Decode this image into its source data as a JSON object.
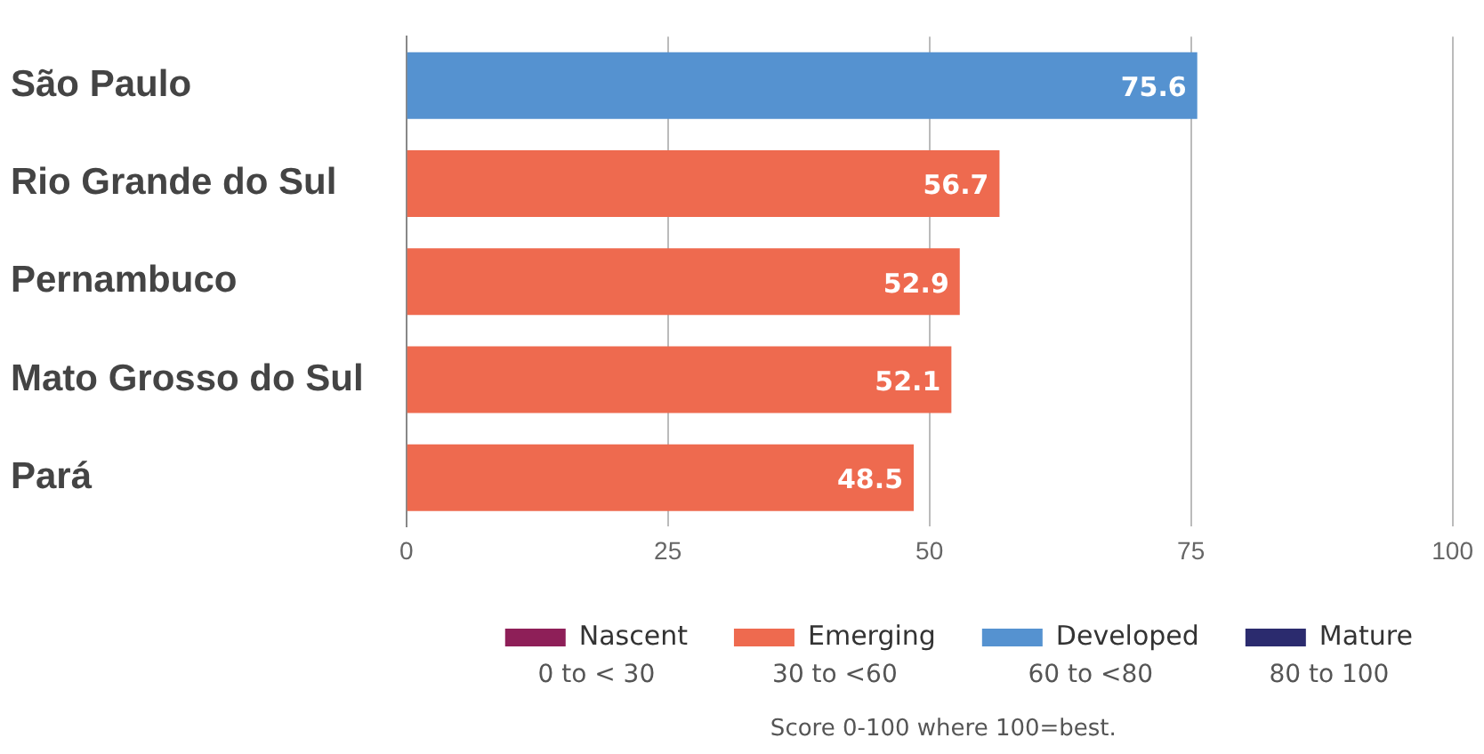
{
  "chart_data": {
    "type": "bar",
    "orientation": "horizontal",
    "stacked": true,
    "categories": [
      "São Paulo",
      "Rio Grande do Sul",
      "Pernambuco",
      "Mato Grosso do Sul",
      "Pará"
    ],
    "series": [
      {
        "name": "Nascent",
        "color": "#8e1f58",
        "values": [
          null,
          null,
          null,
          null,
          null
        ]
      },
      {
        "name": "Emerging",
        "color": "#ee6a4f",
        "values": [
          null,
          56.7,
          52.9,
          52.1,
          48.5
        ]
      },
      {
        "name": "Developed",
        "color": "#5592d0",
        "values": [
          75.6,
          null,
          null,
          null,
          null
        ]
      },
      {
        "name": "Mature",
        "color": "#2b2b6e",
        "values": [
          null,
          null,
          null,
          null,
          null
        ]
      }
    ],
    "xlim": [
      0,
      100
    ],
    "xticks": [
      0,
      25,
      50,
      75,
      100
    ],
    "grid": "x",
    "data_labels": true,
    "legend": "bottom",
    "annotations": [
      "0 to < 30",
      "30 to <60",
      "60 to <80",
      "80 to 100",
      "Score 0-100 where 100=best."
    ]
  }
}
